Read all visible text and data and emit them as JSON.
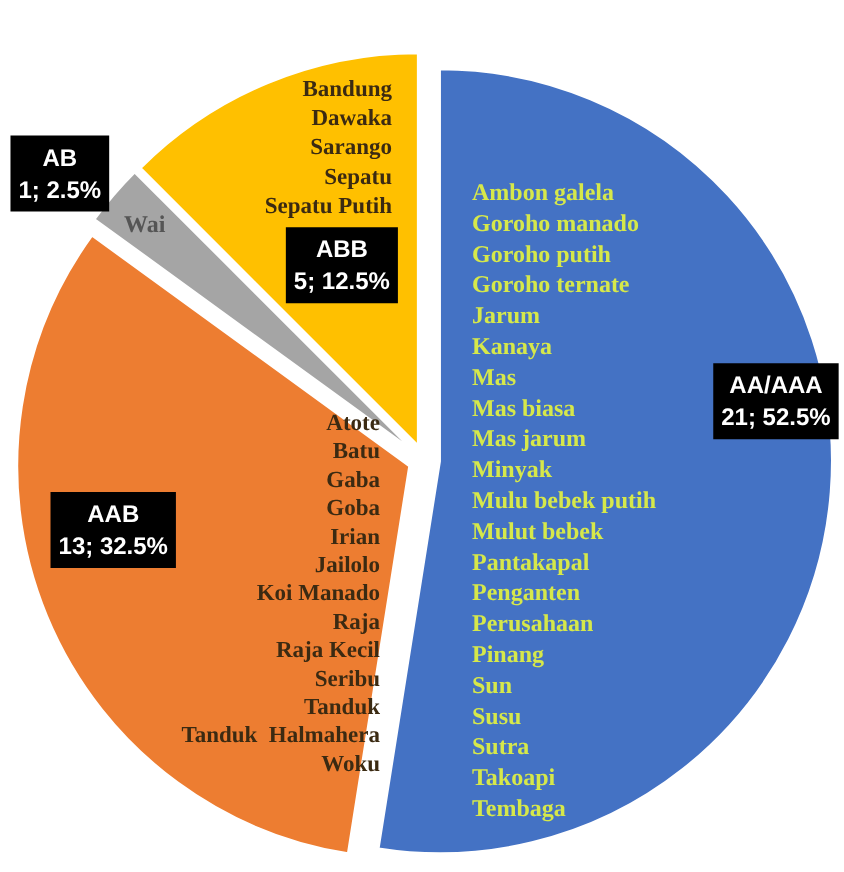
{
  "chart_data": {
    "type": "pie",
    "categories": [
      "AA/AAA",
      "AAB",
      "AB",
      "ABB"
    ],
    "values": [
      21,
      13,
      1,
      5
    ],
    "colors": [
      "#4472c4",
      "#ed7d31",
      "#a5a5a5",
      "#ffc000"
    ],
    "value_labels": [
      "21; 52.5%",
      "13; 32.5%",
      "1; 2.5%",
      "5; 12.5%"
    ],
    "annotations": [
      "Ambon galela\nGoroho manado\nGoroho putih\nGoroho ternate\nJarum\nKanaya\nMas\nMas biasa\nMas jarum\nMinyak\nMulu bebek putih\nMulut bebek\nPantakapal\nPenganten\nPerusahaan\nPinang\nSun\nSusu\nSutra\nTakoapi\nTembaga",
      "Atote\nBatu\nGaba\nGoba\nIrian\nJailolo\nKoi Manado\nRaja\nRaja Kecil\nSeribu\nTanduk\nTanduk  Halmahera\nWoku",
      "Wai",
      "Bandung\nDawaka\nSarango\nSepatu\nSepatu Putih"
    ],
    "legend": false
  }
}
